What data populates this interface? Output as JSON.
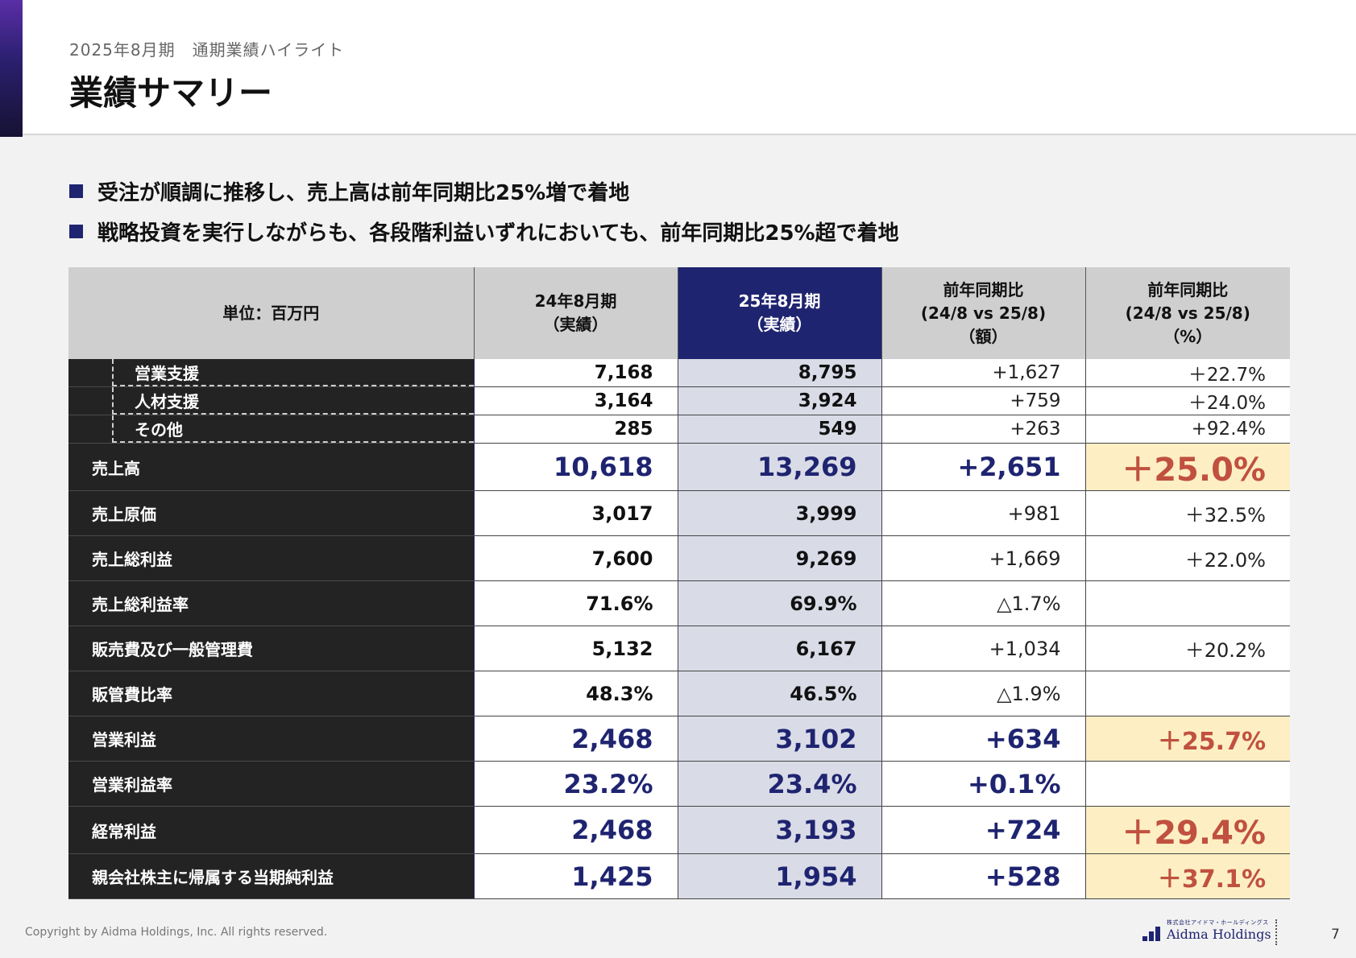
{
  "header": {
    "subtitle": "2025年8月期　通期業績ハイライト",
    "title": "業績サマリー"
  },
  "bullets": [
    "受注が順調に推移し、売上高は前年同期比25%増で着地",
    "戦略投資を実行しながらも、各段階利益いずれにおいても、前年同期比25%超で着地"
  ],
  "table": {
    "headers": {
      "unit": "単位：百万円",
      "col_fy24": [
        "24年8月期",
        "（実績）"
      ],
      "col_fy25": [
        "25年8月期",
        "（実績）"
      ],
      "col_diff": [
        "前年同期比",
        "(24/8 vs 25/8)",
        "（額）"
      ],
      "col_pct": [
        "前年同期比",
        "(24/8 vs 25/8)",
        "（%）"
      ]
    },
    "rows": [
      {
        "label": "営業支援",
        "fy24": "7,168",
        "fy25": "8,795",
        "diff": "+1,627",
        "pct": "＋22.7%"
      },
      {
        "label": "人材支援",
        "fy24": "3,164",
        "fy25": "3,924",
        "diff": "+759",
        "pct": "＋24.0%"
      },
      {
        "label": "その他",
        "fy24": "285",
        "fy25": "549",
        "diff": "+263",
        "pct": "+92.4%"
      },
      {
        "label": "売上高",
        "fy24": "10,618",
        "fy25": "13,269",
        "diff": "+2,651",
        "pct": "＋25.0%"
      },
      {
        "label": "売上原価",
        "fy24": "3,017",
        "fy25": "3,999",
        "diff": "+981",
        "pct": "＋32.5%"
      },
      {
        "label": "売上総利益",
        "fy24": "7,600",
        "fy25": "9,269",
        "diff": "+1,669",
        "pct": "＋22.0%"
      },
      {
        "label": "売上総利益率",
        "fy24": "71.6%",
        "fy25": "69.9%",
        "diff": "△1.7%",
        "pct": ""
      },
      {
        "label": "販売費及び一般管理費",
        "fy24": "5,132",
        "fy25": "6,167",
        "diff": "+1,034",
        "pct": "＋20.2%"
      },
      {
        "label": "販管費比率",
        "fy24": "48.3%",
        "fy25": "46.5%",
        "diff": "△1.9%",
        "pct": ""
      },
      {
        "label": "営業利益",
        "fy24": "2,468",
        "fy25": "3,102",
        "diff": "+634",
        "pct": "＋25.7%"
      },
      {
        "label": "営業利益率",
        "fy24": "23.2%",
        "fy25": "23.4%",
        "diff": "+0.1%",
        "pct": ""
      },
      {
        "label": "経常利益",
        "fy24": "2,468",
        "fy25": "3,193",
        "diff": "+724",
        "pct": "＋29.4%"
      },
      {
        "label": "親会社株主に帰属する当期純利益",
        "fy24": "1,425",
        "fy25": "1,954",
        "diff": "+528",
        "pct": "＋37.1%"
      }
    ]
  },
  "footer": {
    "copyright": "Copyright by Aidma Holdings, Inc. All rights reserved.",
    "logo_small": "株式会社アイドマ・ホールディングス",
    "logo_name": "Aidma Holdings",
    "page_number": "7"
  },
  "colors": {
    "accent_navy": "#1f2470",
    "highlight_yellow": "#fdefc3",
    "positive_red": "#c0503f",
    "fy25_column": "#d9dbe7"
  }
}
